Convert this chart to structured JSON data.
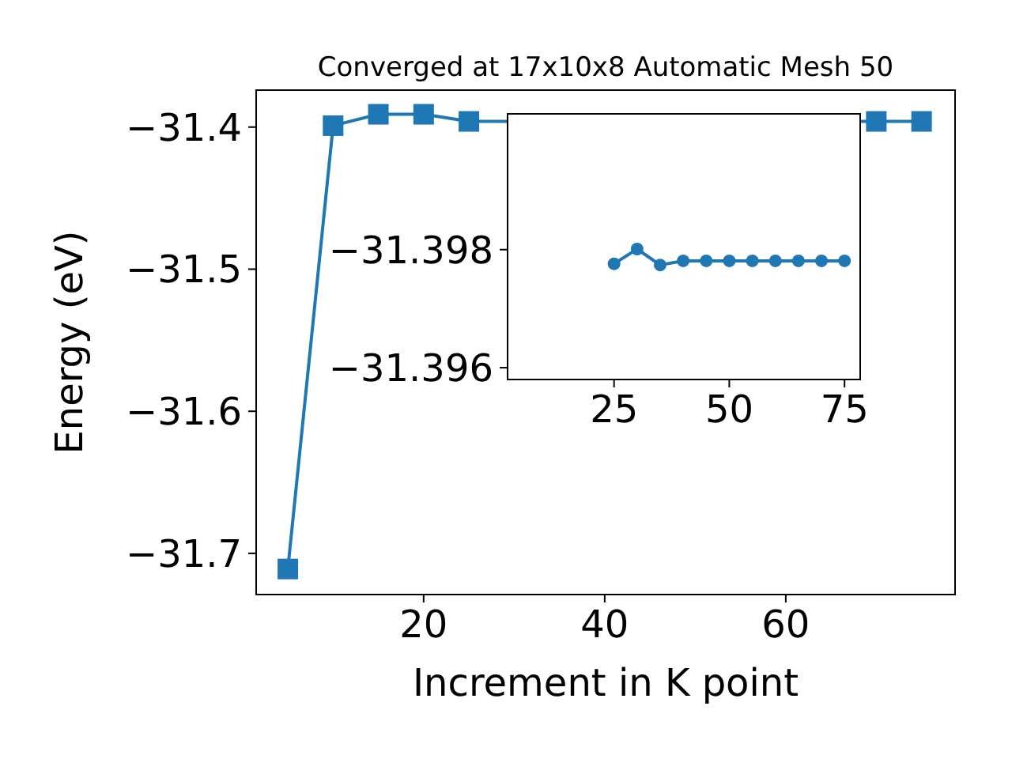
{
  "chart_data": [
    {
      "type": "line",
      "title": "Converged at 17x10x8 Automatic Mesh 50",
      "xlabel": "Increment in K point",
      "ylabel": "Energy (eV)",
      "x": [
        5,
        10,
        15,
        20,
        25,
        30,
        35,
        40,
        45,
        50,
        55,
        60,
        65,
        70,
        75
      ],
      "series": [
        {
          "color": "#1f77b4",
          "values": [
            -31.711,
            -31.399,
            -31.391,
            -31.391,
            -31.396,
            null,
            null,
            null,
            null,
            null,
            null,
            null,
            null,
            -31.396,
            -31.396
          ]
        }
      ],
      "xlim": [
        1.5,
        78.7
      ],
      "xticks": [
        20,
        40,
        60
      ],
      "ylim": [
        -31.729,
        -31.374
      ],
      "yticks": [
        {
          "value": -31.7,
          "label": "−31.7"
        },
        {
          "value": -31.6,
          "label": "−31.6"
        },
        {
          "value": -31.5,
          "label": "−31.5"
        },
        {
          "value": -31.4,
          "label": "−31.4"
        }
      ],
      "marker": "square"
    },
    {
      "type": "line",
      "x": [
        25,
        30,
        35,
        40,
        45,
        50,
        55,
        60,
        65,
        70,
        75
      ],
      "series": [
        {
          "color": "#1f77b4",
          "values": [
            -31.39776,
            -31.39801,
            -31.39774,
            -31.39781,
            -31.39781,
            -31.39781,
            -31.39781,
            -31.39781,
            -31.39781,
            -31.39781,
            -31.39781
          ]
        }
      ],
      "xlim": [
        1.9,
        78.4
      ],
      "xticks": [
        25,
        50,
        75
      ],
      "ylim": [
        -31.3958,
        -31.4003
      ],
      "yticks": [
        {
          "value": -31.398,
          "label": "−31.398"
        },
        {
          "value": -31.396,
          "label": "−31.396"
        }
      ],
      "marker": "circle"
    }
  ]
}
